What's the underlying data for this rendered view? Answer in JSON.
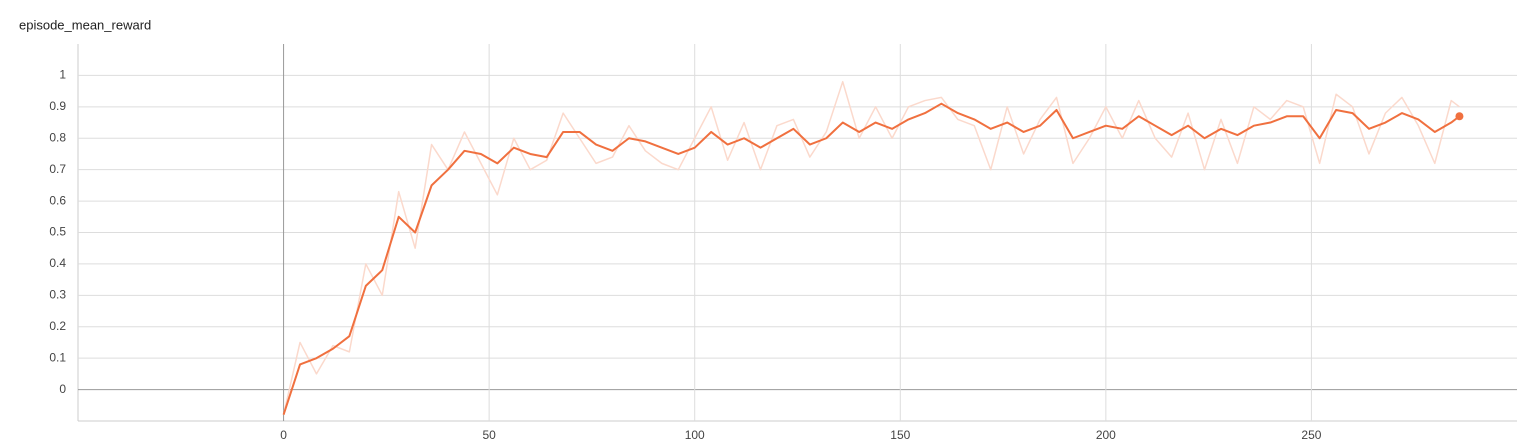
{
  "chart_data": {
    "type": "line",
    "title": "episode_mean_reward",
    "x": [
      0,
      4,
      8,
      12,
      16,
      20,
      24,
      28,
      32,
      36,
      40,
      44,
      48,
      52,
      56,
      60,
      64,
      68,
      72,
      76,
      80,
      84,
      88,
      92,
      96,
      100,
      104,
      108,
      112,
      116,
      120,
      124,
      128,
      132,
      136,
      140,
      144,
      148,
      152,
      156,
      160,
      164,
      168,
      172,
      176,
      180,
      184,
      188,
      192,
      196,
      200,
      204,
      208,
      212,
      216,
      220,
      224,
      228,
      232,
      236,
      240,
      244,
      248,
      252,
      256,
      260,
      264,
      268,
      272,
      276,
      280,
      284,
      286
    ],
    "series": [
      {
        "color": "#fbd9cc",
        "values": [
          -0.08,
          0.15,
          0.05,
          0.14,
          0.12,
          0.4,
          0.3,
          0.63,
          0.45,
          0.78,
          0.7,
          0.82,
          0.72,
          0.62,
          0.8,
          0.7,
          0.73,
          0.88,
          0.8,
          0.72,
          0.74,
          0.84,
          0.76,
          0.72,
          0.7,
          0.8,
          0.9,
          0.73,
          0.85,
          0.7,
          0.84,
          0.86,
          0.74,
          0.82,
          0.98,
          0.8,
          0.9,
          0.8,
          0.9,
          0.92,
          0.93,
          0.86,
          0.84,
          0.7,
          0.9,
          0.75,
          0.86,
          0.93,
          0.72,
          0.8,
          0.9,
          0.8,
          0.92,
          0.8,
          0.74,
          0.88,
          0.7,
          0.86,
          0.72,
          0.9,
          0.86,
          0.92,
          0.9,
          0.72,
          0.94,
          0.9,
          0.75,
          0.88,
          0.93,
          0.84,
          0.72,
          0.92,
          0.9
        ]
      },
      {
        "color": "#f0703f",
        "values": [
          -0.08,
          0.08,
          0.1,
          0.13,
          0.17,
          0.33,
          0.38,
          0.55,
          0.5,
          0.65,
          0.7,
          0.76,
          0.75,
          0.72,
          0.77,
          0.75,
          0.74,
          0.82,
          0.82,
          0.78,
          0.76,
          0.8,
          0.79,
          0.77,
          0.75,
          0.77,
          0.82,
          0.78,
          0.8,
          0.77,
          0.8,
          0.83,
          0.78,
          0.8,
          0.85,
          0.82,
          0.85,
          0.83,
          0.86,
          0.88,
          0.91,
          0.88,
          0.86,
          0.83,
          0.85,
          0.82,
          0.84,
          0.89,
          0.8,
          0.82,
          0.84,
          0.83,
          0.87,
          0.84,
          0.81,
          0.84,
          0.8,
          0.83,
          0.81,
          0.84,
          0.85,
          0.87,
          0.87,
          0.8,
          0.89,
          0.88,
          0.83,
          0.85,
          0.88,
          0.86,
          0.82,
          0.85,
          0.87
        ]
      }
    ],
    "xlim": [
      -50,
      300
    ],
    "xticks": [
      0,
      50,
      100,
      150,
      200,
      250
    ],
    "ylim": [
      -0.1,
      1.1
    ],
    "yticks": [
      0,
      0.1,
      0.2,
      0.3,
      0.4,
      0.5,
      0.6,
      0.7,
      0.8,
      0.9,
      1
    ],
    "grid": true
  }
}
